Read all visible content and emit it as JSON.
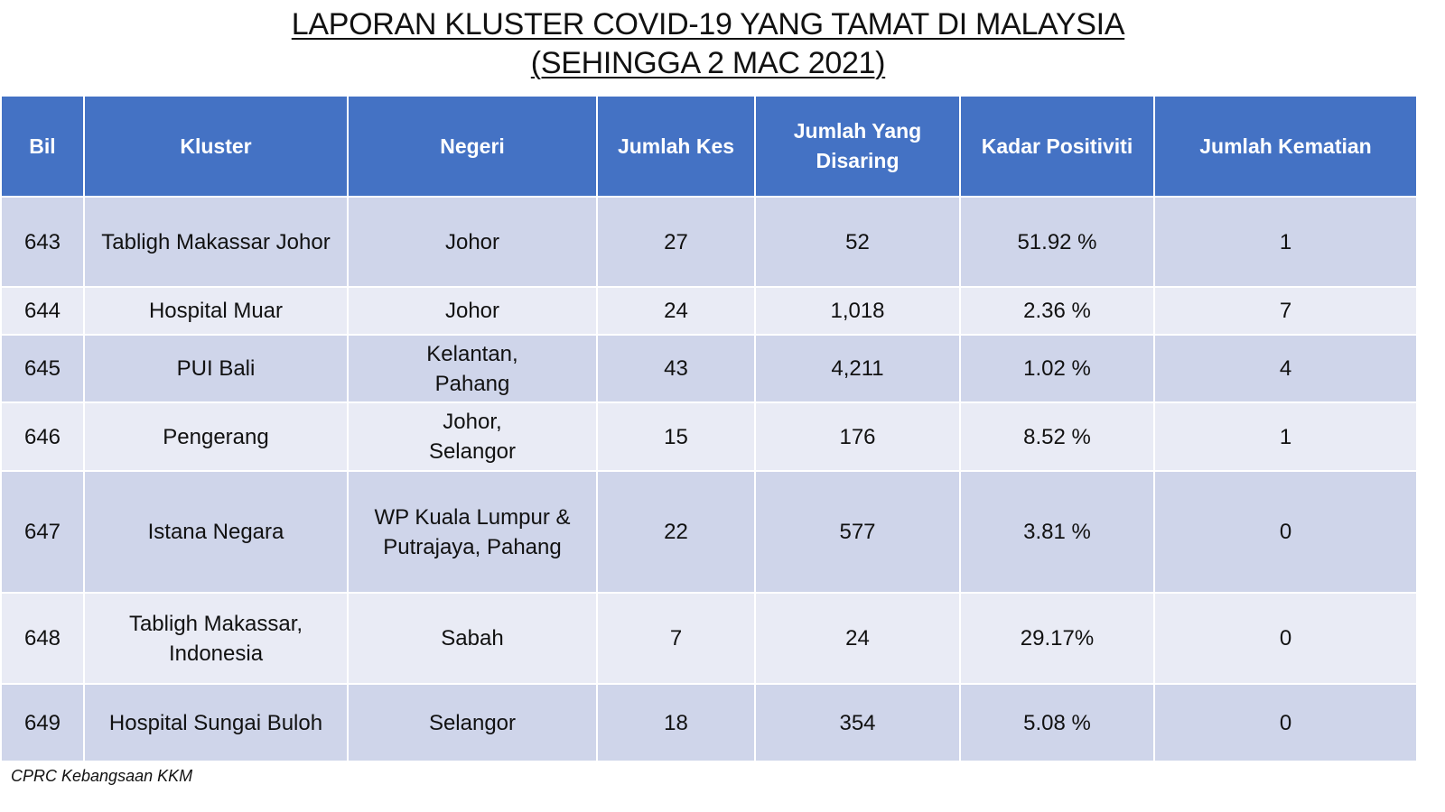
{
  "title": {
    "line1": "LAPORAN KLUSTER COVID-19 YANG TAMAT DI MALAYSIA",
    "line2": "(SEHINGGA 2 MAC 2021)"
  },
  "table": {
    "headers": [
      "Bil",
      "Kluster",
      "Negeri",
      "Jumlah Kes",
      "Jumlah Yang Disaring",
      "Kadar Positiviti",
      "Jumlah Kematian"
    ],
    "rows": [
      {
        "bil": "643",
        "kluster": "Tabligh Makassar Johor",
        "negeri": "Johor",
        "jumlah_kes": "27",
        "disaring": "52",
        "positiviti": "51.92 %",
        "kematian": "1"
      },
      {
        "bil": "644",
        "kluster": "Hospital Muar",
        "negeri": "Johor",
        "jumlah_kes": "24",
        "disaring": "1,018",
        "positiviti": "2.36 %",
        "kematian": "7"
      },
      {
        "bil": "645",
        "kluster": "PUI Bali",
        "negeri": "Kelantan, Pahang",
        "jumlah_kes": "43",
        "disaring": "4,211",
        "positiviti": "1.02 %",
        "kematian": "4"
      },
      {
        "bil": "646",
        "kluster": "Pengerang",
        "negeri": "Johor, Selangor",
        "jumlah_kes": "15",
        "disaring": "176",
        "positiviti": "8.52 %",
        "kematian": "1"
      },
      {
        "bil": "647",
        "kluster": "Istana Negara",
        "negeri": "WP Kuala Lumpur & Putrajaya, Pahang",
        "jumlah_kes": "22",
        "disaring": "577",
        "positiviti": "3.81 %",
        "kematian": "0"
      },
      {
        "bil": "648",
        "kluster": "Tabligh Makassar, Indonesia",
        "negeri": "Sabah",
        "jumlah_kes": "7",
        "disaring": "24",
        "positiviti": "29.17%",
        "kematian": "0"
      },
      {
        "bil": "649",
        "kluster": "Hospital Sungai Buloh",
        "negeri": "Selangor",
        "jumlah_kes": "18",
        "disaring": "354",
        "positiviti": "5.08 %",
        "kematian": "0"
      }
    ]
  },
  "footer": "CPRC Kebangsaan KKM",
  "colors": {
    "header_bg": "#4472c4",
    "row_odd_bg": "#cfd5ea",
    "row_even_bg": "#e9ebf5"
  }
}
